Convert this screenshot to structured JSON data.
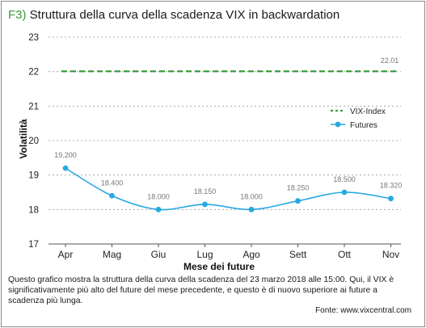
{
  "header": {
    "prefix": "F3)",
    "title": "Struttura della curva della scadenza VIX in backwardation"
  },
  "chart_data": {
    "type": "line",
    "categories": [
      "Apr",
      "Mag",
      "Giu",
      "Lug",
      "Ago",
      "Sett",
      "Ott",
      "Nov"
    ],
    "series": [
      {
        "name": "VIX-Index",
        "values": [
          22.01,
          22.01,
          22.01,
          22.01,
          22.01,
          22.01,
          22.01,
          22.01
        ],
        "style": "dashed",
        "color": "#3e9b3e",
        "label": "22.01"
      },
      {
        "name": "Futures",
        "values": [
          19.2,
          18.4,
          18.0,
          18.15,
          18.0,
          18.25,
          18.5,
          18.32
        ],
        "labels": [
          "19.200",
          "18.400",
          "18.000",
          "18.150",
          "18.000",
          "18.250",
          "18.500",
          "18.320"
        ],
        "style": "solid",
        "color": "#29a8e0"
      }
    ],
    "ylabel": "Volatilità",
    "xlabel": "Mese dei future",
    "ylim": [
      17,
      23
    ],
    "yticks": [
      "17",
      "18",
      "19",
      "20",
      "21",
      "22",
      "23"
    ],
    "grid": true,
    "legend": "right",
    "legend_labels": [
      "VIX-Index",
      "Futures"
    ]
  },
  "footer": {
    "caption": "Questo grafico mostra la struttura della curva della scadenza del 23 marzo 2018 alle 15:00. Qui, il VIX è significativamente più alto del future del mese precedente, e questo è di nuovo superiore ai future a scadenza più lunga.",
    "source": "Fonte: www.vixcentral.com"
  }
}
